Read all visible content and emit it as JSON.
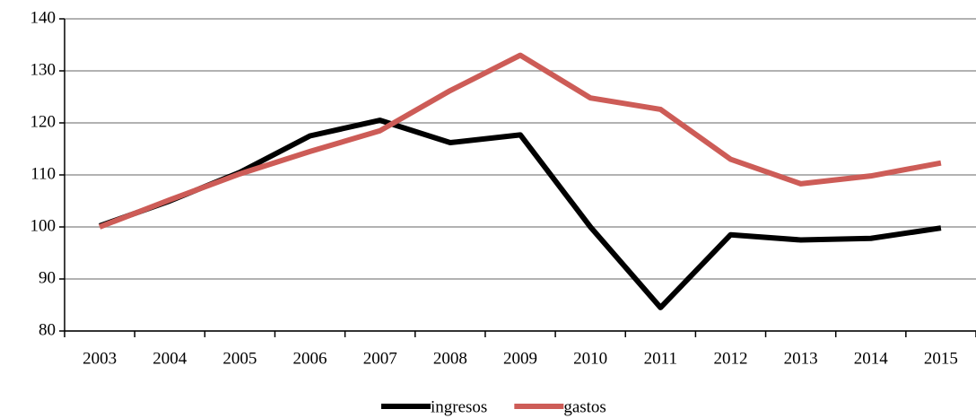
{
  "chart_data": {
    "type": "line",
    "categories": [
      "2003",
      "2004",
      "2005",
      "2006",
      "2007",
      "2008",
      "2009",
      "2010",
      "2011",
      "2012",
      "2013",
      "2014",
      "2015"
    ],
    "series": [
      {
        "name": "ingresos",
        "color": "#000000",
        "values": [
          100.2,
          105,
          110.5,
          117.5,
          120.5,
          116.2,
          117.7,
          100,
          84.5,
          98.5,
          97.5,
          97.8,
          99.8
        ]
      },
      {
        "name": "gastos",
        "color": "#cd5c57",
        "values": [
          100,
          105.2,
          110.2,
          114.5,
          118.5,
          126.2,
          133,
          124.8,
          122.6,
          113,
          108.3,
          109.8,
          112.3
        ]
      }
    ],
    "ylim": [
      80,
      140
    ],
    "yticks": [
      80,
      90,
      100,
      110,
      120,
      130,
      140
    ],
    "grid": true,
    "legend": "bottom"
  }
}
